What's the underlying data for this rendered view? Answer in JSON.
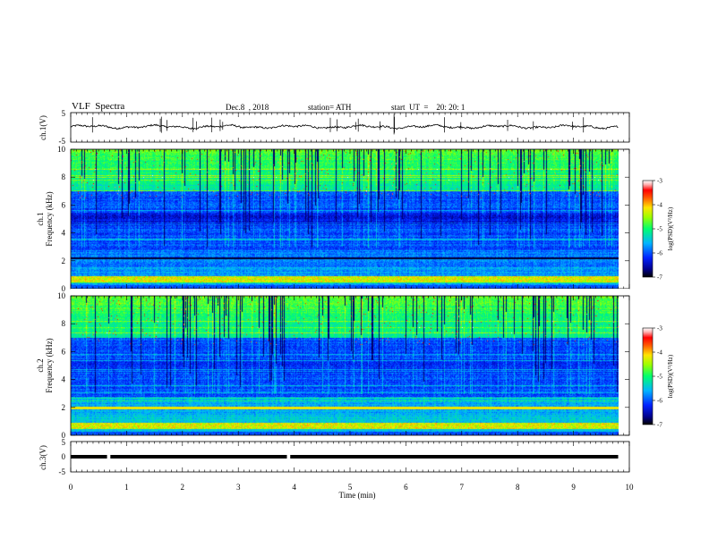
{
  "header": {
    "title": "VLF  Spectra",
    "date": "Dec.8  , 2018",
    "station": "station= ATH",
    "start": "start  UT  =    20: 20: 1"
  },
  "chart_data": [
    {
      "type": "line",
      "panel": "ch1-waveform",
      "ylabel": "ch.1(V)",
      "ylim": [
        -5,
        5
      ],
      "y_ticks": [
        "5",
        "-5"
      ],
      "x_range_min": [
        0,
        9.8
      ],
      "description_level": 0.2
    },
    {
      "type": "heatmap",
      "panel": "ch1-spectrogram",
      "ylabel": "ch.1\nFrequency  (kHz)",
      "ylabel_lines": [
        "ch.1",
        "Frequency  (kHz)"
      ],
      "ylim": [
        0,
        10
      ],
      "y_ticks": [
        "0",
        "2",
        "4",
        "6",
        "8",
        "10"
      ],
      "x_range_min": [
        0,
        9.8
      ],
      "colorbar": {
        "label": "log(PSD)(V²/Hz)",
        "range": [
          -7,
          -3
        ],
        "ticks": [
          "-3",
          "-4",
          "-5",
          "-6",
          "-7"
        ]
      }
    },
    {
      "type": "heatmap",
      "panel": "ch2-spectrogram",
      "ylabel": "ch.2\nFrequency  (kHz)",
      "ylabel_lines": [
        "ch.2",
        "Frequency  (kHz)"
      ],
      "ylim": [
        0,
        10
      ],
      "y_ticks": [
        "0",
        "2",
        "4",
        "6",
        "8",
        "10"
      ],
      "x_range_min": [
        0,
        9.8
      ],
      "colorbar": {
        "label": "log(PSD)(V²/Hz)",
        "range": [
          -7,
          -3
        ],
        "ticks": [
          "-3",
          "-4",
          "-5",
          "-6",
          "-7"
        ]
      }
    },
    {
      "type": "line",
      "panel": "ch3-waveform",
      "ylabel": "ch.3(V)",
      "ylim": [
        -5,
        5
      ],
      "y_ticks": [
        "5",
        "0",
        "-5"
      ],
      "level": 0,
      "gaps_min": [
        0.68,
        3.9
      ]
    }
  ],
  "x_axis": {
    "label": "Time  (min)",
    "xlim": [
      0,
      10
    ],
    "ticks": [
      "0",
      "1",
      "2",
      "3",
      "4",
      "5",
      "6",
      "7",
      "8",
      "9",
      "10"
    ]
  },
  "colors": {
    "scale": [
      "#000000",
      "#0000cc",
      "#0044ff",
      "#00c8ff",
      "#00ff66",
      "#aaff00",
      "#ffee00",
      "#ff6600",
      "#ff0000",
      "#ffe0e0",
      "#ffffff"
    ],
    "line": "#000000"
  }
}
